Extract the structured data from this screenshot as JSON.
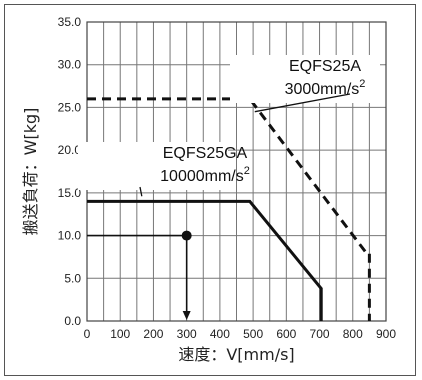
{
  "chart_data": {
    "type": "line",
    "xlabel": "速度：V[mm/s]",
    "ylabel": "搬送負荷：W[kg]",
    "xlim": [
      0,
      900
    ],
    "ylim": [
      0,
      35
    ],
    "x_ticks": [
      "0",
      "100",
      "200",
      "300",
      "400",
      "500",
      "600",
      "700",
      "800",
      "900"
    ],
    "y_ticks": [
      "0.0",
      "5.0",
      "10.0",
      "15.0",
      "20.0",
      "25.0",
      "30.0",
      "35.0"
    ],
    "grid": true,
    "minor_grid_step_x": 50,
    "series": [
      {
        "name": "EQFS25A 3000mm/s²",
        "style": "dashed",
        "points": [
          [
            0,
            26
          ],
          [
            490,
            26
          ],
          [
            840,
            8
          ],
          [
            850,
            8
          ],
          [
            850,
            0
          ]
        ]
      },
      {
        "name": "EQFS25GA 10000mm/s²",
        "style": "solid",
        "points": [
          [
            0,
            14
          ],
          [
            490,
            14
          ],
          [
            705,
            3.8
          ],
          [
            705,
            0
          ]
        ]
      }
    ],
    "reading_example": {
      "x": 300,
      "y": 10
    },
    "annotations": [
      {
        "series": 0,
        "line1": "EQFS25A",
        "line2": "3000mm/s",
        "sup": "2"
      },
      {
        "series": 1,
        "line1": "EQFS25GA",
        "line2": "10000mm/s",
        "sup": "2"
      }
    ]
  }
}
